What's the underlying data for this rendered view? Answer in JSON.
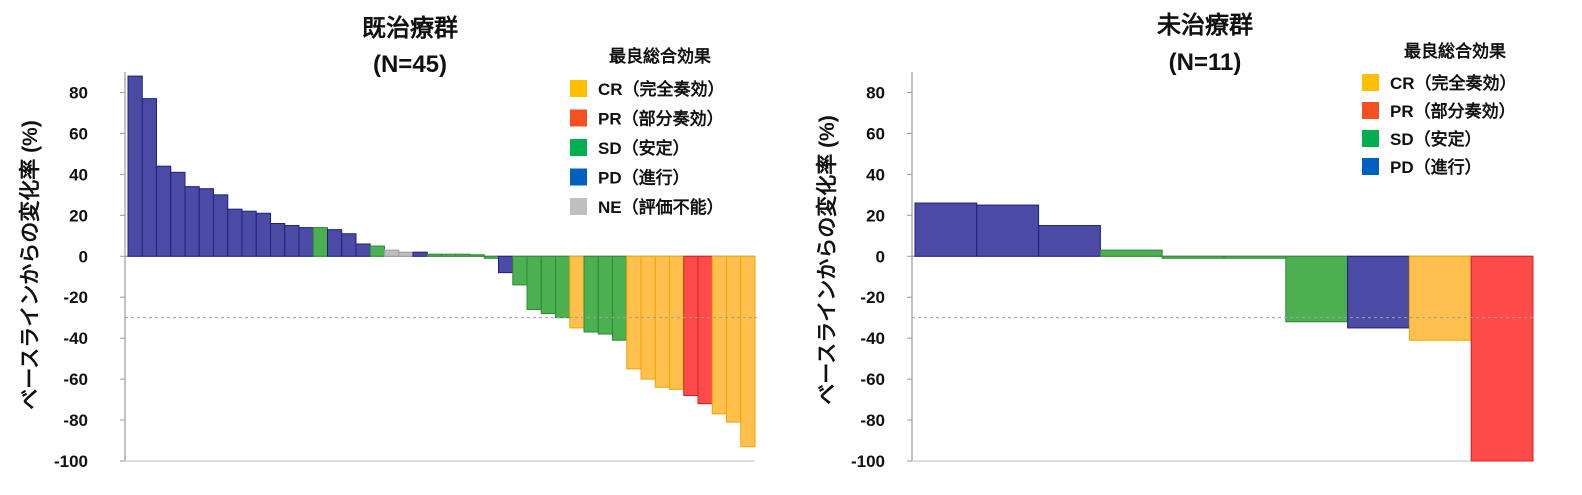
{
  "legend": {
    "title": "最良総合効果",
    "categories": [
      {
        "key": "CR",
        "label": "CR（完全奏効）",
        "color": "#FFC000"
      },
      {
        "key": "PR",
        "label": "PR（部分奏効）",
        "color": "#F4511E"
      },
      {
        "key": "SD",
        "label": "SD（安定）",
        "color": "#00B050"
      },
      {
        "key": "PD",
        "label": "PD（進行）",
        "color": "#0060C0"
      },
      {
        "key": "NE",
        "label": "NE（評価不能）",
        "color": "#BFBFBF"
      }
    ]
  },
  "bar_colors": {
    "PD": {
      "fill": "#4B4BA6",
      "stroke": "#1F1F80"
    },
    "SD": {
      "fill": "#4CAF50",
      "stroke": "#2E8B35"
    },
    "CR": {
      "fill": "#FFC04D",
      "stroke": "#F0A500"
    },
    "PR": {
      "fill": "#FF4A4A",
      "stroke": "#D02020"
    },
    "NE": {
      "fill": "#BDBDBD",
      "stroke": "#9E9E9E"
    }
  },
  "chart_data": [
    {
      "type": "bar",
      "title": "既治療群",
      "subtitle": "(N=45)",
      "ylabel": "ベースラインからの変化率 (%)",
      "ylim": [
        -100,
        90
      ],
      "yticks": [
        80,
        60,
        40,
        20,
        0,
        -20,
        -40,
        -60,
        -80,
        -100
      ],
      "reference_line": -30,
      "legend_keys": [
        "CR",
        "PR",
        "SD",
        "PD",
        "NE"
      ],
      "values": [
        88,
        77,
        44,
        41,
        34,
        33,
        30,
        23,
        22,
        21,
        16,
        15,
        14,
        14,
        13,
        11,
        6,
        5,
        3,
        2,
        2,
        1,
        1,
        1,
        0,
        -1,
        -8,
        -14,
        -26,
        -28,
        -30,
        -35,
        -37,
        -38,
        -41,
        -55,
        -60,
        -64,
        -65,
        -68,
        -72,
        -77,
        -81,
        -93
      ],
      "responses": [
        "PD",
        "PD",
        "PD",
        "PD",
        "PD",
        "PD",
        "PD",
        "PD",
        "PD",
        "PD",
        "PD",
        "PD",
        "PD",
        "SD",
        "PD",
        "PD",
        "PD",
        "SD",
        "NE",
        "NE",
        "PD",
        "SD",
        "SD",
        "SD",
        "SD",
        "SD",
        "PD",
        "SD",
        "SD",
        "SD",
        "SD",
        "CR",
        "SD",
        "SD",
        "SD",
        "CR",
        "CR",
        "CR",
        "CR",
        "PR",
        "PR",
        "CR",
        "CR",
        "CR"
      ]
    },
    {
      "type": "bar",
      "title": "未治療群",
      "subtitle": "(N=11)",
      "ylabel": "ベースラインからの変化率 (%)",
      "ylim": [
        -100,
        90
      ],
      "yticks": [
        80,
        60,
        40,
        20,
        0,
        -20,
        -40,
        -60,
        -80,
        -100
      ],
      "reference_line": -30,
      "legend_keys": [
        "CR",
        "PR",
        "SD",
        "PD"
      ],
      "values": [
        26,
        25,
        15,
        3,
        -1,
        -1,
        -32,
        -35,
        -41,
        -100
      ],
      "responses": [
        "PD",
        "PD",
        "PD",
        "SD",
        "SD",
        "SD",
        "SD",
        "PD",
        "CR",
        "PR"
      ]
    }
  ]
}
